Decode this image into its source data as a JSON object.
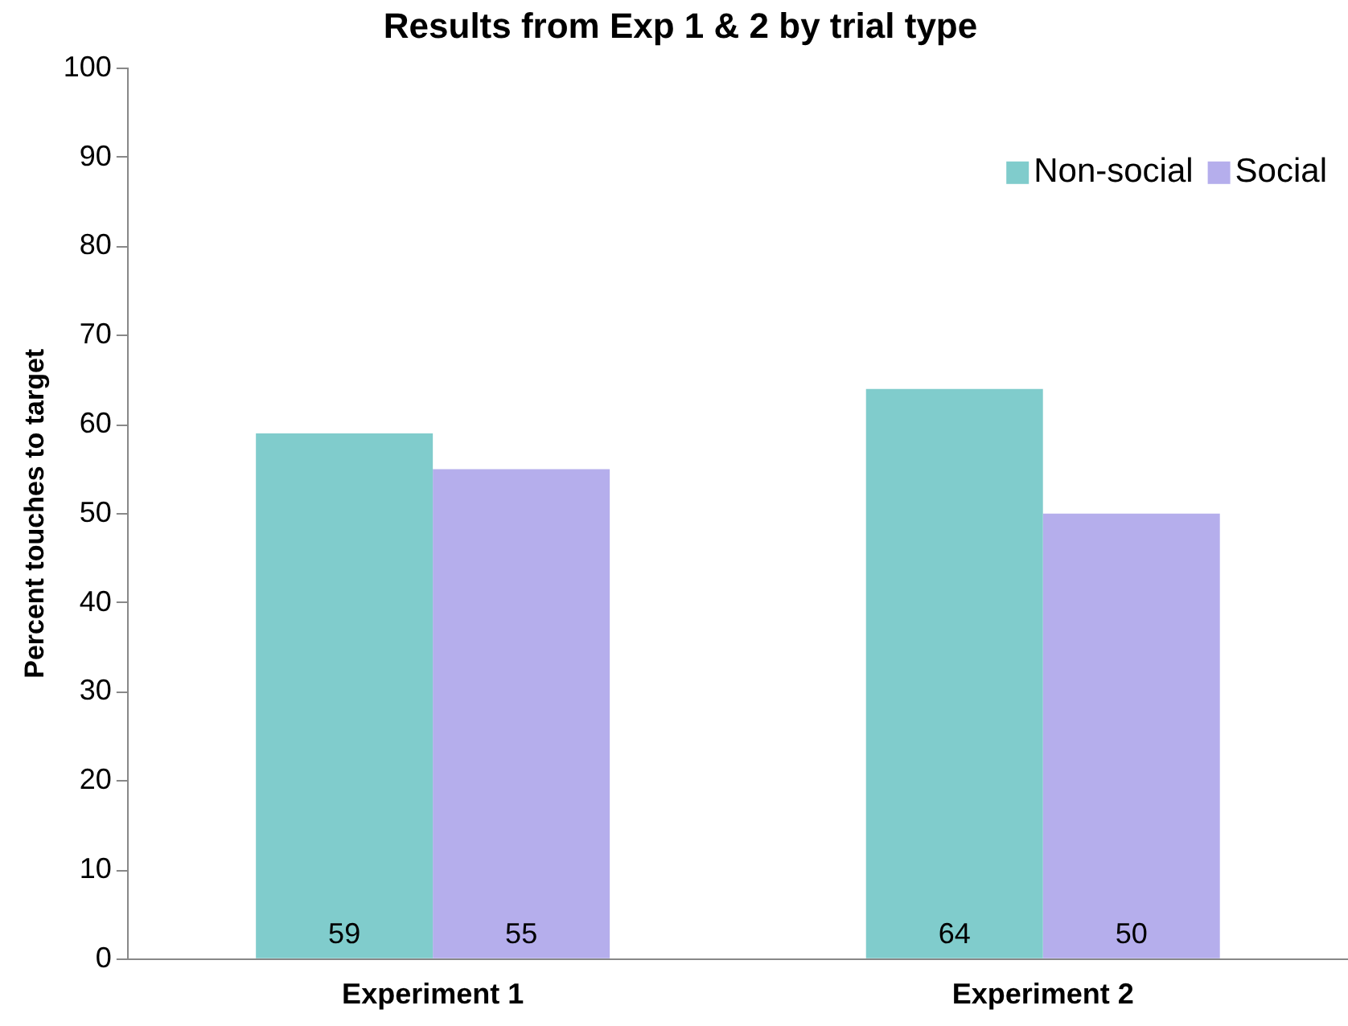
{
  "chart_data": {
    "type": "bar",
    "title": "Results from Exp 1 & 2 by trial type",
    "ylabel": "Percent touches to target",
    "categories": [
      "Experiment 1",
      "Experiment 2"
    ],
    "series": [
      {
        "name": "Non-social",
        "color": "#80cccc",
        "values": [
          59,
          64
        ]
      },
      {
        "name": "Social",
        "color": "#b5aeec",
        "values": [
          55,
          50
        ]
      }
    ],
    "ylim": [
      0,
      100
    ],
    "yticks": [
      0,
      10,
      20,
      30,
      40,
      50,
      60,
      70,
      80,
      90,
      100
    ],
    "grid": false,
    "legend": "top right",
    "data_labels": true
  }
}
